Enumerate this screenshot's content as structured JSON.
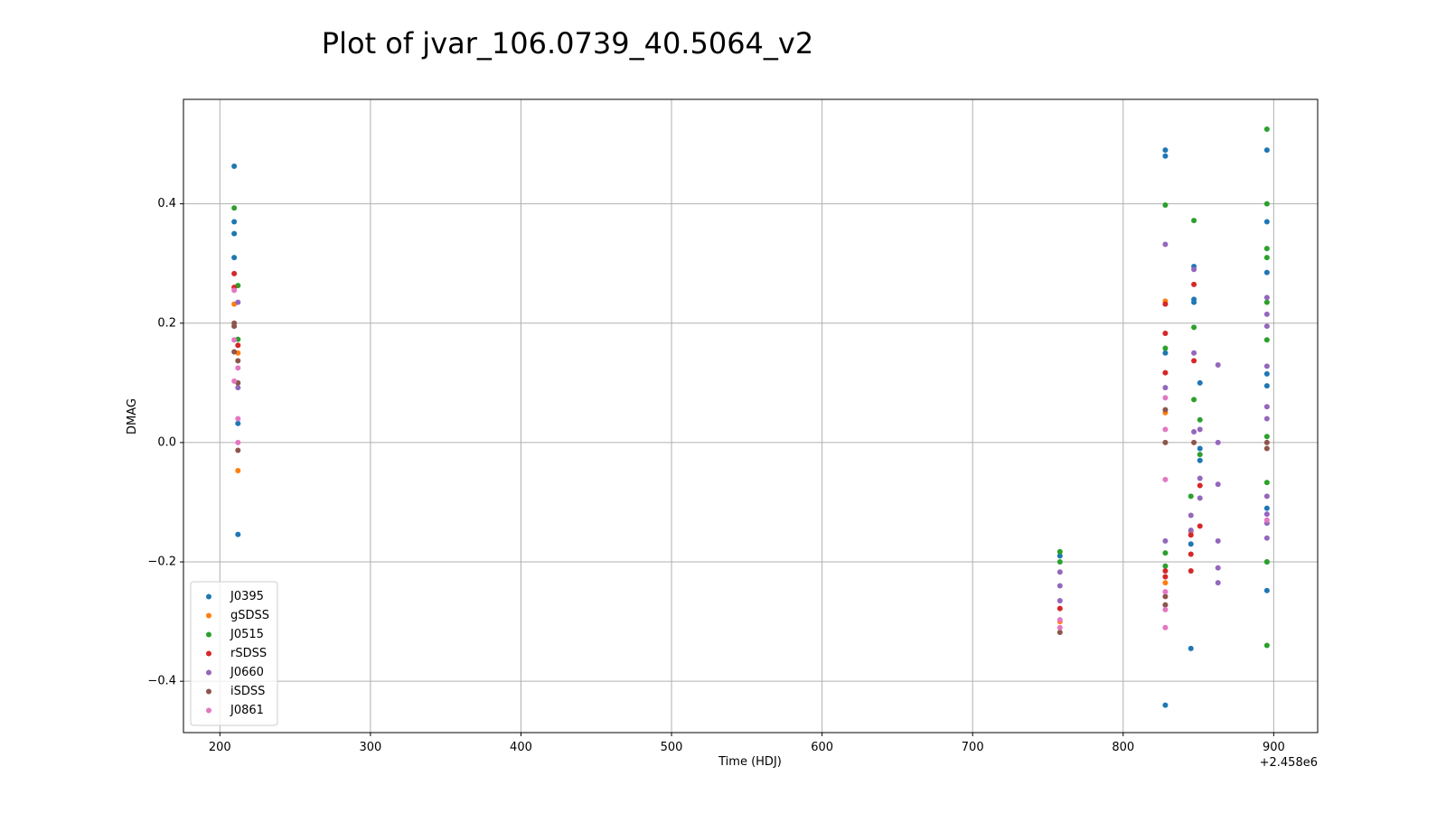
{
  "chart_data": {
    "type": "scatter",
    "title": "Plot of jvar_106.0739_40.5064_v2",
    "x_label": "Time (HDJ)",
    "y_label": "DMAG",
    "x_offset_label": "+2.458e6",
    "xlim": [
      175.8,
      929.2
    ],
    "ylim": [
      -0.486,
      0.575
    ],
    "xticks": [
      200,
      300,
      400,
      500,
      600,
      700,
      800,
      900
    ],
    "yticks": [
      {
        "value": -0.4,
        "label": "−0.4"
      },
      {
        "value": -0.2,
        "label": "−0.2"
      },
      {
        "value": 0,
        "label": "0.0"
      },
      0.2,
      0.4
    ],
    "grid": true,
    "legend": "lower left",
    "series": [
      {
        "name": "J0395",
        "color": "#1f77b4",
        "x": [
          209.5,
          209.5,
          209.5,
          209.5,
          212,
          212,
          758,
          828,
          828,
          828,
          828,
          845,
          845,
          847,
          847,
          847,
          851,
          851,
          851,
          895.5,
          895.5,
          895.5,
          895.5,
          895.5,
          895.5,
          895.5,
          895.5
        ],
        "values": [
          0.463,
          0.37,
          0.35,
          0.31,
          0.032,
          -0.154,
          -0.19,
          0.49,
          0.48,
          0.15,
          -0.44,
          -0.17,
          -0.345,
          0.295,
          0.24,
          0.235,
          0.1,
          -0.01,
          -0.03,
          0.49,
          0.37,
          0.285,
          0.115,
          0.095,
          -0.11,
          -0.2,
          -0.248
        ]
      },
      {
        "name": "gSDSS",
        "color": "#ff7f0e",
        "x": [
          209.5,
          212,
          212,
          758,
          828,
          828,
          828,
          845
        ],
        "values": [
          0.232,
          0.15,
          -0.047,
          -0.3,
          0.237,
          0.05,
          -0.235,
          -0.15
        ]
      },
      {
        "name": "J0515",
        "color": "#2ca02c",
        "x": [
          209.5,
          212,
          212,
          758,
          758,
          828,
          828,
          828,
          828,
          845,
          847,
          847,
          847,
          851,
          851,
          895.5,
          895.5,
          895.5,
          895.5,
          895.5,
          895.5,
          895.5,
          895.5,
          895.5,
          895.5
        ],
        "values": [
          0.393,
          0.263,
          0.173,
          -0.183,
          -0.2,
          0.398,
          0.158,
          -0.207,
          -0.185,
          -0.09,
          0.372,
          0.193,
          0.072,
          0.038,
          -0.02,
          0.525,
          0.4,
          0.325,
          0.31,
          0.235,
          0.172,
          0.01,
          -0.067,
          -0.2,
          -0.34
        ]
      },
      {
        "name": "rSDSS",
        "color": "#d62728",
        "x": [
          209.5,
          209.5,
          212,
          758,
          828,
          828,
          828,
          828,
          828,
          845,
          845,
          845,
          847,
          847,
          851,
          851
        ],
        "values": [
          0.283,
          0.26,
          0.163,
          -0.278,
          0.232,
          0.183,
          0.117,
          -0.215,
          -0.225,
          -0.187,
          -0.215,
          -0.155,
          0.265,
          0.137,
          -0.072,
          -0.14
        ]
      },
      {
        "name": "J0660",
        "color": "#9467bd",
        "x": [
          212,
          212,
          758,
          758,
          758,
          828,
          828,
          828,
          845,
          845,
          847,
          847,
          847,
          851,
          851,
          851,
          863,
          863,
          863,
          863,
          863,
          863,
          895.5,
          895.5,
          895.5,
          895.5,
          895.5,
          895.5,
          895.5,
          895.5,
          895.5,
          895.5
        ],
        "values": [
          0.235,
          0.092,
          -0.217,
          -0.24,
          -0.265,
          0.332,
          0.092,
          -0.165,
          -0.122,
          -0.147,
          0.29,
          0.15,
          0.018,
          0.022,
          -0.06,
          -0.093,
          0.13,
          0.0,
          -0.07,
          -0.165,
          -0.21,
          -0.235,
          0.243,
          0.215,
          0.195,
          0.128,
          0.06,
          0.04,
          -0.09,
          -0.12,
          -0.135,
          -0.16
        ]
      },
      {
        "name": "iSDSS",
        "color": "#8c564b",
        "x": [
          209.5,
          209.5,
          209.5,
          212,
          212,
          212,
          758,
          828,
          828,
          828,
          828,
          847,
          895.5,
          895.5
        ],
        "values": [
          0.2,
          0.195,
          0.152,
          0.137,
          0.1,
          -0.013,
          -0.318,
          0.055,
          0.0,
          -0.258,
          -0.272,
          0.0,
          0.0,
          -0.01
        ]
      },
      {
        "name": "J0861",
        "color": "#e377c2",
        "x": [
          209.5,
          209.5,
          209.5,
          212,
          212,
          212,
          758,
          758,
          828,
          828,
          828,
          828,
          828,
          828,
          895.5
        ],
        "values": [
          0.255,
          0.172,
          0.103,
          0.125,
          0.04,
          0.0,
          -0.297,
          -0.31,
          0.075,
          0.022,
          -0.062,
          -0.25,
          -0.28,
          -0.31,
          -0.13
        ]
      }
    ]
  }
}
